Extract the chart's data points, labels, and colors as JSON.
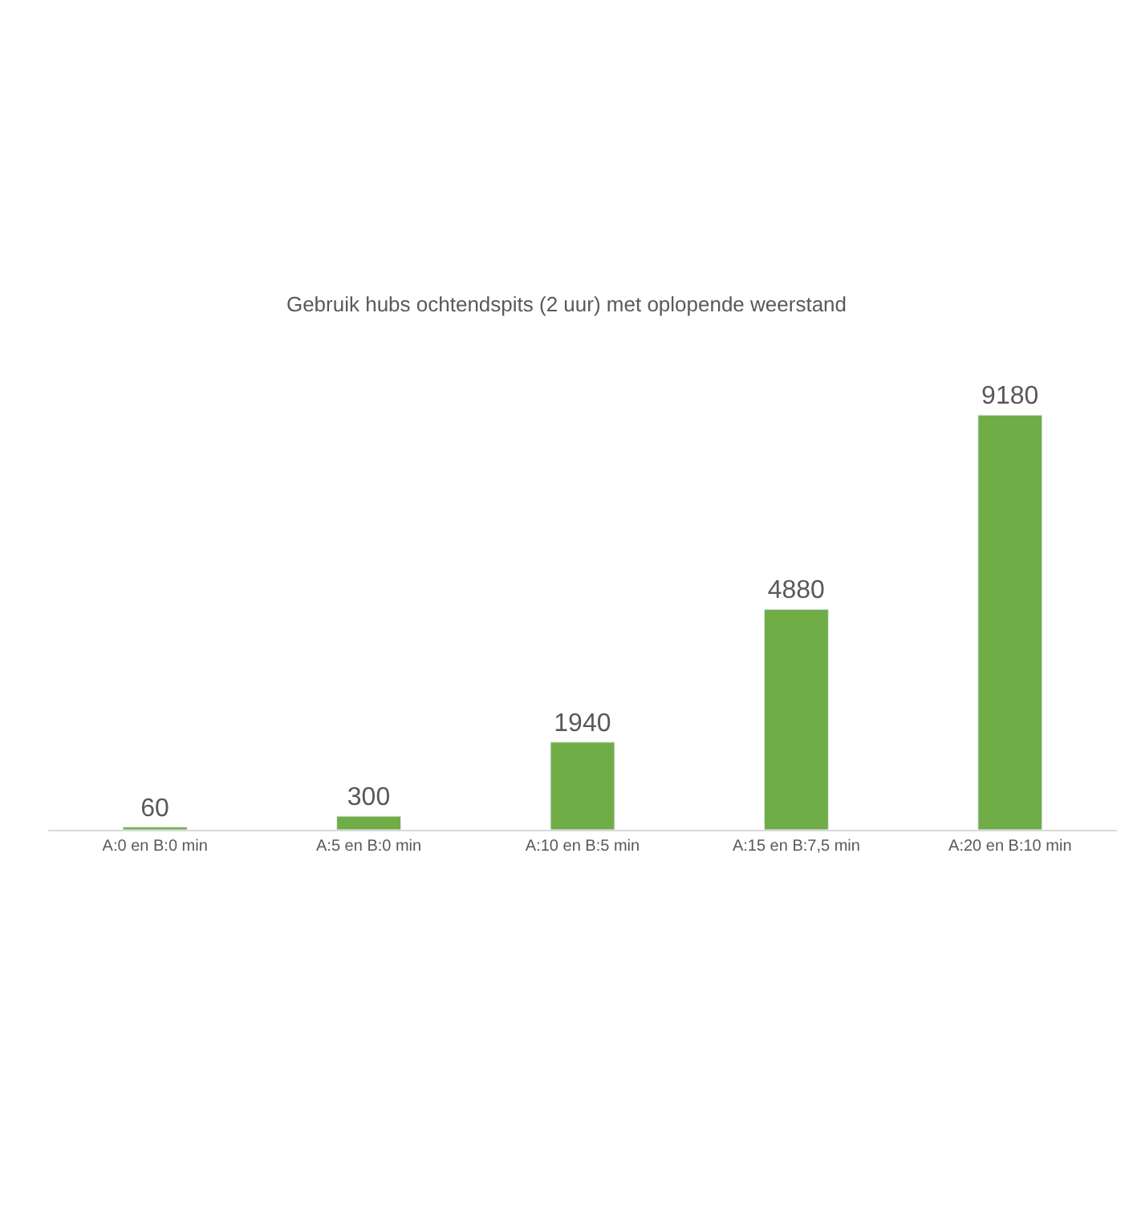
{
  "chart_data": {
    "type": "bar",
    "title": "Gebruik hubs ochtendspits (2 uur) met oplopende weerstand",
    "categories": [
      "A:0 en B:0 min",
      "A:5 en B:0 min",
      "A:10 en B:5 min",
      "A:15 en B:7,5 min",
      "A:20 en B:10 min"
    ],
    "values": [
      60,
      300,
      1940,
      4880,
      9180
    ],
    "color": "#70ad47",
    "data_labels": true
  }
}
